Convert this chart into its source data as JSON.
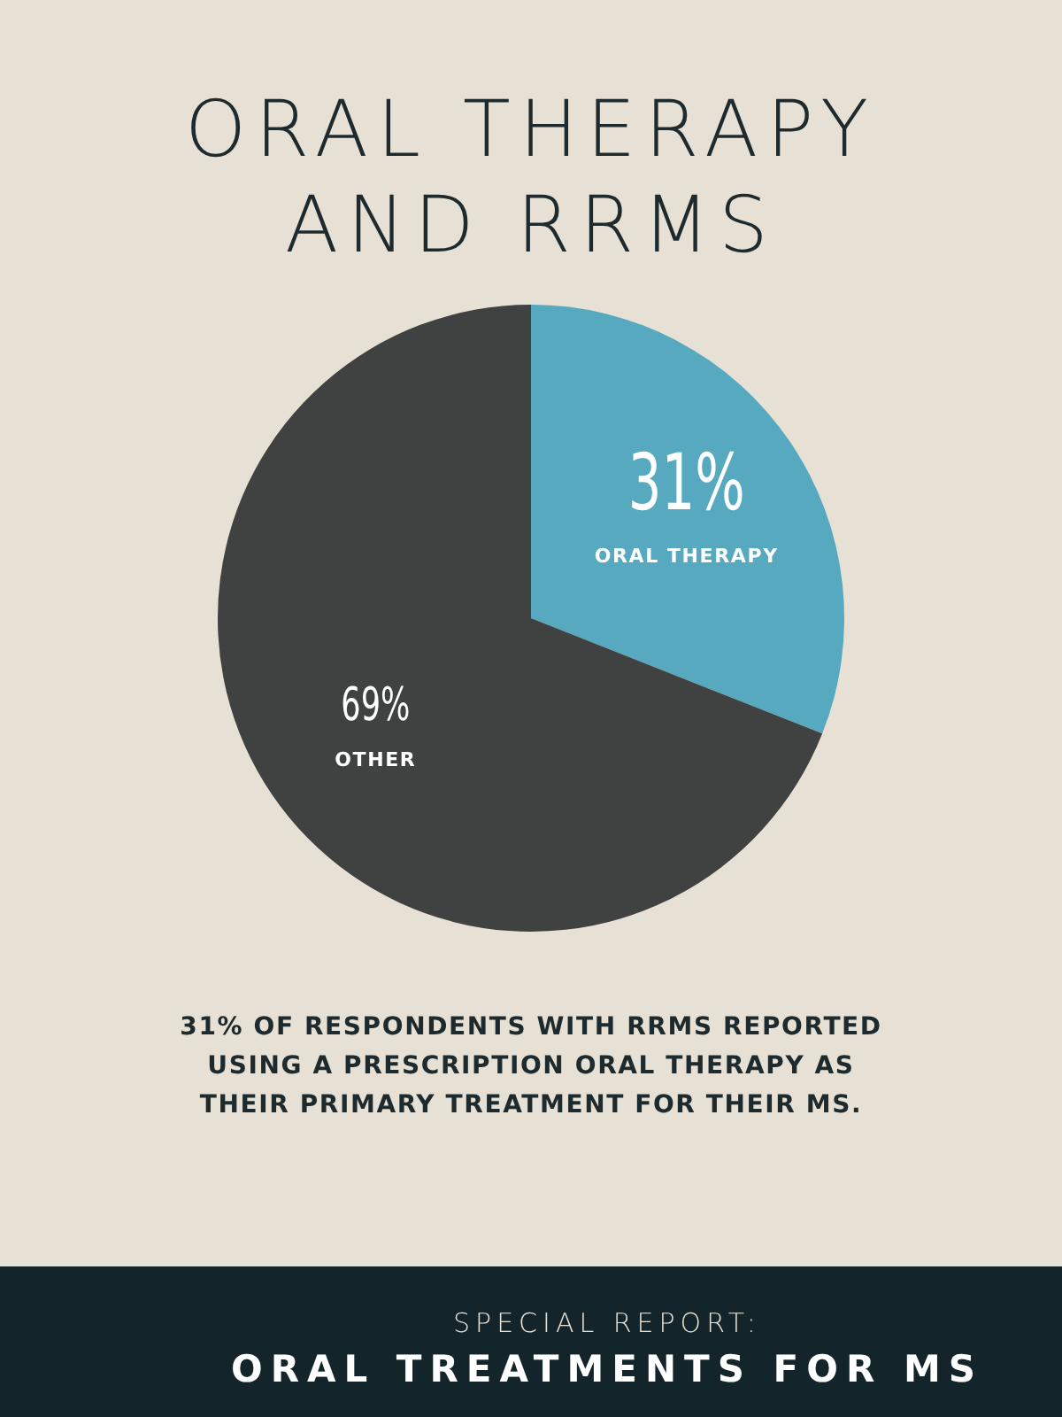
{
  "chart_data": {
    "type": "pie",
    "title": "ORAL THERAPY AND RRMS",
    "categories": [
      "ORAL THERAPY",
      "OTHER"
    ],
    "values": [
      31,
      69
    ],
    "colors": [
      "#57a9bf",
      "#404141"
    ],
    "value_labels": [
      "31%",
      "69%"
    ],
    "annotations": [
      "31% OF RESPONDENTS WITH RRMS REPORTED USING A PRESCRIPTION ORAL THERAPY AS THEIR PRIMARY TREATMENT FOR THEIR MS.",
      "SPECIAL REPORT:",
      "ORAL TREATMENTS FOR MS"
    ]
  }
}
